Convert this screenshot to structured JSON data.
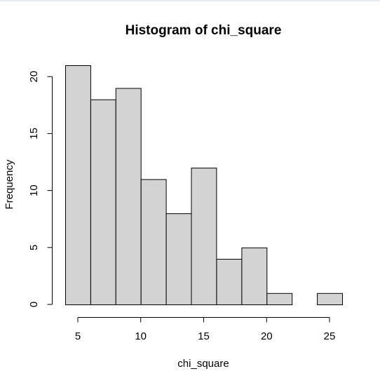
{
  "chart_data": {
    "type": "bar",
    "title": "Histogram of chi_square",
    "xlabel": "chi_square",
    "ylabel": "Frequency",
    "bin_edges": [
      4,
      6,
      8,
      10,
      12,
      14,
      16,
      18,
      20,
      22,
      24,
      26
    ],
    "counts": [
      21,
      18,
      19,
      11,
      8,
      12,
      4,
      5,
      1,
      0,
      1
    ],
    "x_ticks": [
      5,
      10,
      15,
      20,
      25
    ],
    "y_ticks": [
      0,
      5,
      10,
      15,
      20
    ],
    "xlim": [
      4,
      26
    ],
    "ylim": [
      0,
      21
    ],
    "bar_fill": "#d3d3d3",
    "bar_stroke": "#000000",
    "grid": false,
    "legend": "none"
  }
}
